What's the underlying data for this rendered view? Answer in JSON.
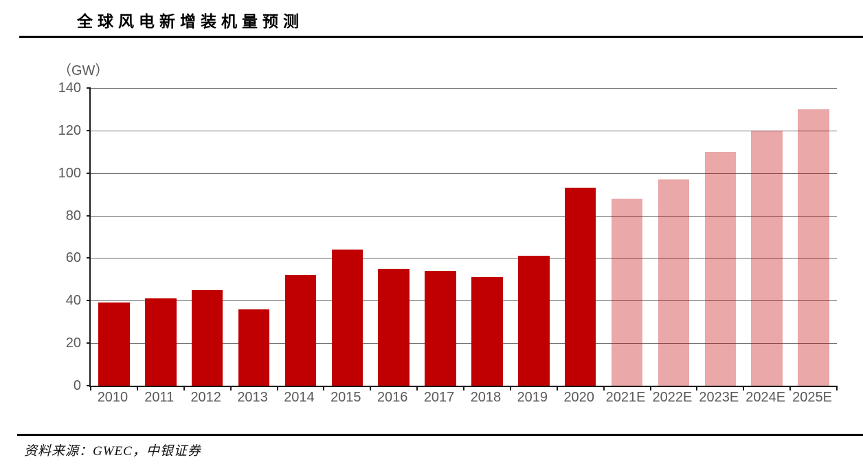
{
  "header": {
    "title": "全球风电新增装机量预测"
  },
  "chart_data": {
    "type": "bar",
    "title": "全球风电新增装机量预测",
    "unit_label": "（GW）",
    "categories": [
      "2010",
      "2011",
      "2012",
      "2013",
      "2014",
      "2015",
      "2016",
      "2017",
      "2018",
      "2019",
      "2020",
      "2021E",
      "2022E",
      "2023E",
      "2024E",
      "2025E"
    ],
    "series": [
      {
        "name": "全球风电新增装机量",
        "values": [
          39,
          41,
          45,
          36,
          52,
          64,
          55,
          54,
          51,
          61,
          93,
          88,
          97,
          110,
          120,
          130
        ]
      }
    ],
    "forecast_start_index": 11,
    "ylim": [
      0,
      140
    ],
    "yticks": [
      0,
      20,
      40,
      60,
      80,
      100,
      120,
      140
    ],
    "grid": "horizontal",
    "legend": "none",
    "colors": {
      "historical_bar": "#C00000",
      "forecast_bar": "rgba(192,0,0,0.34)",
      "gridline": "#6e6e6e",
      "axis": "#1a1a1a",
      "axis_label": "#595959"
    }
  },
  "footer": {
    "source": "资料来源：GWEC，中银证券"
  }
}
